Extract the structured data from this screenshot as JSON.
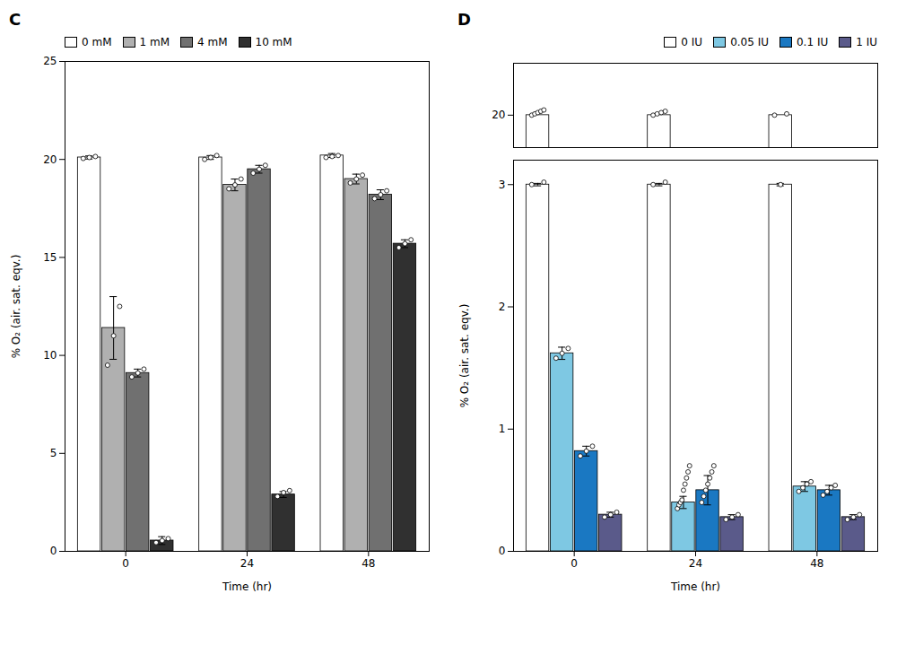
{
  "chart_data": [
    {
      "type": "bar",
      "title": "C",
      "categories": [
        "0",
        "24",
        "48"
      ],
      "xlabel": "Time (hr)",
      "ylabel": "% O₂ (air. sat. eqv.)",
      "ylim": [
        0,
        25
      ],
      "yticks": [
        0,
        5,
        10,
        15,
        20,
        25
      ],
      "legend": "upper left",
      "series": [
        {
          "name": "0 mM",
          "color": "#ffffff",
          "values": [
            20.1,
            20.1,
            20.2
          ],
          "errors": [
            0.08,
            0.1,
            0.1
          ],
          "points": [
            [
              20.05,
              20.1,
              20.15
            ],
            [
              20.0,
              20.1,
              20.2
            ],
            [
              20.1,
              20.15,
              20.2
            ]
          ]
        },
        {
          "name": "1 mM",
          "color": "#b0b0b0",
          "values": [
            11.4,
            18.7,
            19.0
          ],
          "errors": [
            1.6,
            0.3,
            0.25
          ],
          "points": [
            [
              9.5,
              11.0,
              12.5
            ],
            [
              18.5,
              18.7,
              19.0
            ],
            [
              18.8,
              19.0,
              19.2
            ]
          ]
        },
        {
          "name": "4 mM",
          "color": "#707070",
          "values": [
            9.1,
            19.5,
            18.2
          ],
          "errors": [
            0.2,
            0.2,
            0.25
          ],
          "points": [
            [
              8.9,
              9.1,
              9.3
            ],
            [
              19.3,
              19.5,
              19.7
            ],
            [
              18.0,
              18.2,
              18.4
            ]
          ]
        },
        {
          "name": "10 mM",
          "color": "#303030",
          "values": [
            0.55,
            2.9,
            15.7
          ],
          "errors": [
            0.2,
            0.15,
            0.2
          ],
          "points": [
            [
              0.45,
              0.55,
              0.65
            ],
            [
              2.8,
              3.0,
              3.1
            ],
            [
              15.5,
              15.7,
              15.9
            ]
          ]
        }
      ]
    },
    {
      "type": "bar",
      "title": "D",
      "categories": [
        "0",
        "24",
        "48"
      ],
      "ylim": [
        19.5,
        20.8
      ],
      "yticks": [
        20
      ],
      "tick_labels": "y",
      "series": [
        {
          "name": "0 IU",
          "color": "#ffffff",
          "values": [
            20.0,
            20.0,
            20.0
          ],
          "points": [
            [
              20.0,
              20.02,
              20.04,
              20.06,
              20.08
            ],
            [
              20.0,
              20.02,
              20.04,
              20.06
            ],
            [
              20.0,
              20.02
            ]
          ]
        },
        {
          "name": "0.05 IU",
          "color": "#7ec8e3",
          "values": [
            null,
            null,
            null
          ]
        },
        {
          "name": "0.1 IU",
          "color": "#1a78c2",
          "values": [
            null,
            null,
            null
          ]
        },
        {
          "name": "1 IU",
          "color": "#5a5a8a",
          "values": [
            null,
            null,
            null
          ]
        }
      ]
    },
    {
      "type": "bar",
      "categories": [
        "0",
        "24",
        "48"
      ],
      "xlabel": "Time (hr)",
      "ylabel": "% O₂ (air. sat. eqv.)",
      "ylim": [
        0,
        3.2
      ],
      "yticks": [
        0,
        1,
        2,
        3
      ],
      "legend": "upper right",
      "series": [
        {
          "name": "0 IU",
          "color": "#ffffff",
          "values": [
            3.0,
            3.0,
            3.0
          ],
          "errors": [
            0.01,
            0.01,
            0.01
          ],
          "points": [
            [
              3.0,
              3.02
            ],
            [
              3.0,
              3.02
            ],
            [
              3.0
            ]
          ]
        },
        {
          "name": "0.05 IU",
          "color": "#7ec8e3",
          "values": [
            1.62,
            0.4,
            0.53
          ],
          "errors": [
            0.05,
            0.05,
            0.04
          ],
          "points": [
            [
              1.58,
              1.62,
              1.66
            ],
            [
              0.35,
              0.38,
              0.4,
              0.42,
              0.5,
              0.55,
              0.6,
              0.65,
              0.7
            ],
            [
              0.49,
              0.52,
              0.55,
              0.57
            ]
          ]
        },
        {
          "name": "0.1 IU",
          "color": "#1a78c2",
          "values": [
            0.82,
            0.5,
            0.5
          ],
          "errors": [
            0.04,
            0.12,
            0.04
          ],
          "points": [
            [
              0.78,
              0.82,
              0.86
            ],
            [
              0.4,
              0.45,
              0.5,
              0.55,
              0.6,
              0.65,
              0.7
            ],
            [
              0.46,
              0.49,
              0.52,
              0.54
            ]
          ]
        },
        {
          "name": "1 IU",
          "color": "#5a5a8a",
          "values": [
            0.3,
            0.28,
            0.28
          ],
          "errors": [
            0.02,
            0.02,
            0.02
          ],
          "points": [
            [
              0.28,
              0.3,
              0.32
            ],
            [
              0.26,
              0.28,
              0.3
            ],
            [
              0.26,
              0.28,
              0.3
            ]
          ]
        }
      ]
    }
  ]
}
